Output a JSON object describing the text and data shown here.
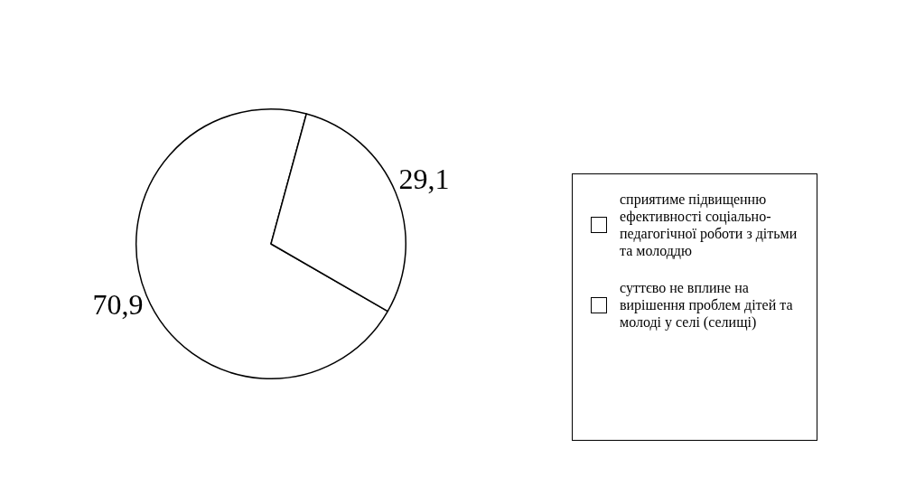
{
  "chart_data": {
    "type": "pie",
    "categories": [
      "сприятиме підвищенню ефективності соціально-педагогічної роботи з дітьми та молоддю",
      "суттєво не вплине на вирішення проблем дітей та молоді у селі (селищі)"
    ],
    "values": [
      70.9,
      29.1
    ],
    "colors": [
      "#ffffff",
      "#ffffff"
    ],
    "value_labels": [
      "70,9",
      "29,1"
    ],
    "legend": "right"
  }
}
